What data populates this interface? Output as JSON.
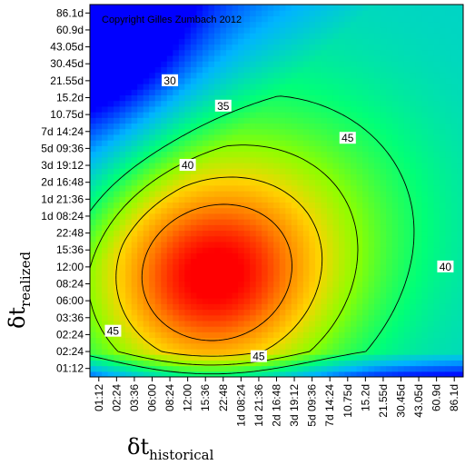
{
  "chart_data": {
    "type": "heatmap",
    "copyright": "Copyright Gilles Zumbach 2012",
    "xlabel": {
      "symbol": "δt",
      "subscript": "historical"
    },
    "ylabel": {
      "symbol": "δt",
      "subscript": "realized"
    },
    "x_ticks": [
      "01:12",
      "02:24",
      "03:36",
      "06:00",
      "08:24",
      "12:00",
      "15:36",
      "22:48",
      "1d 08:24",
      "1d 21:36",
      "2d 16:48",
      "3d 19:12",
      "5d 09:36",
      "7d 14:24",
      "10.75d",
      "15.2d",
      "21.55d",
      "30.45d",
      "43.05d",
      "60.9d",
      "86.1d"
    ],
    "y_ticks": [
      "01:12",
      "02:24",
      "02:24",
      "03:36",
      "06:00",
      "08:24",
      "12:00",
      "15:36",
      "22:48",
      "1d 08:24",
      "1d 21:36",
      "2d 16:48",
      "3d 19:12",
      "5d 09:36",
      "7d 14:24",
      "10.75d",
      "15.2d",
      "21.55d",
      "30.45d",
      "43.05d",
      "60.9d",
      "86.1d"
    ],
    "contour_levels": [
      30,
      35,
      40,
      45
    ],
    "contour_labels": [
      {
        "text": "30",
        "x": 4.0,
        "y": 17.0
      },
      {
        "text": "35",
        "x": 7.0,
        "y": 15.5
      },
      {
        "text": "40",
        "x": 5.0,
        "y": 12.0
      },
      {
        "text": "45",
        "x": 14.0,
        "y": 13.6
      },
      {
        "text": "40",
        "x": 19.5,
        "y": 6.0
      },
      {
        "text": "45",
        "x": 0.8,
        "y": 2.2
      },
      {
        "text": "45",
        "x": 9.0,
        "y": 0.7
      }
    ],
    "value_range": [
      18,
      52
    ],
    "colormap": [
      "#0000ff",
      "#00b4ff",
      "#00ff78",
      "#8cff00",
      "#ffd200",
      "#ff7800",
      "#ff0000"
    ]
  }
}
